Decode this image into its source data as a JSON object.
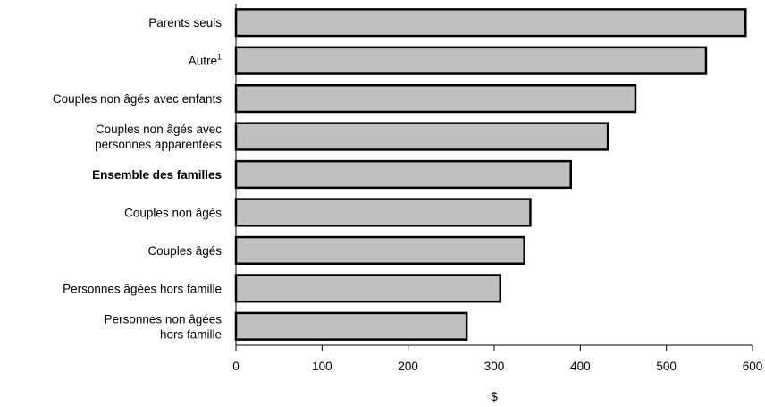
{
  "chart_data": {
    "type": "bar",
    "orientation": "horizontal",
    "title": "",
    "xlabel": "$",
    "ylabel": "",
    "xlim": [
      0,
      600
    ],
    "x_ticks": [
      0,
      100,
      200,
      300,
      400,
      500,
      600
    ],
    "grid": false,
    "legend": "none",
    "bar_color": "#c0c0c0",
    "categories": [
      {
        "lines": [
          "Parents seuls"
        ],
        "value": 592,
        "bold": false
      },
      {
        "lines": [
          "Autre"
        ],
        "superscript": "1",
        "value": 546,
        "bold": false
      },
      {
        "lines": [
          "Couples non âgés avec enfants"
        ],
        "value": 464,
        "bold": false
      },
      {
        "lines": [
          "Couples non âgés avec",
          "personnes apparentées"
        ],
        "value": 432,
        "bold": false
      },
      {
        "lines": [
          "Ensemble des familles"
        ],
        "value": 389,
        "bold": true
      },
      {
        "lines": [
          "Couples non âgés"
        ],
        "value": 342,
        "bold": false
      },
      {
        "lines": [
          "Couples âgés"
        ],
        "value": 335,
        "bold": false
      },
      {
        "lines": [
          "Personnes âgées hors famille"
        ],
        "value": 307,
        "bold": false
      },
      {
        "lines": [
          "Personnes non âgées",
          "hors famille"
        ],
        "value": 268,
        "bold": false
      }
    ]
  }
}
